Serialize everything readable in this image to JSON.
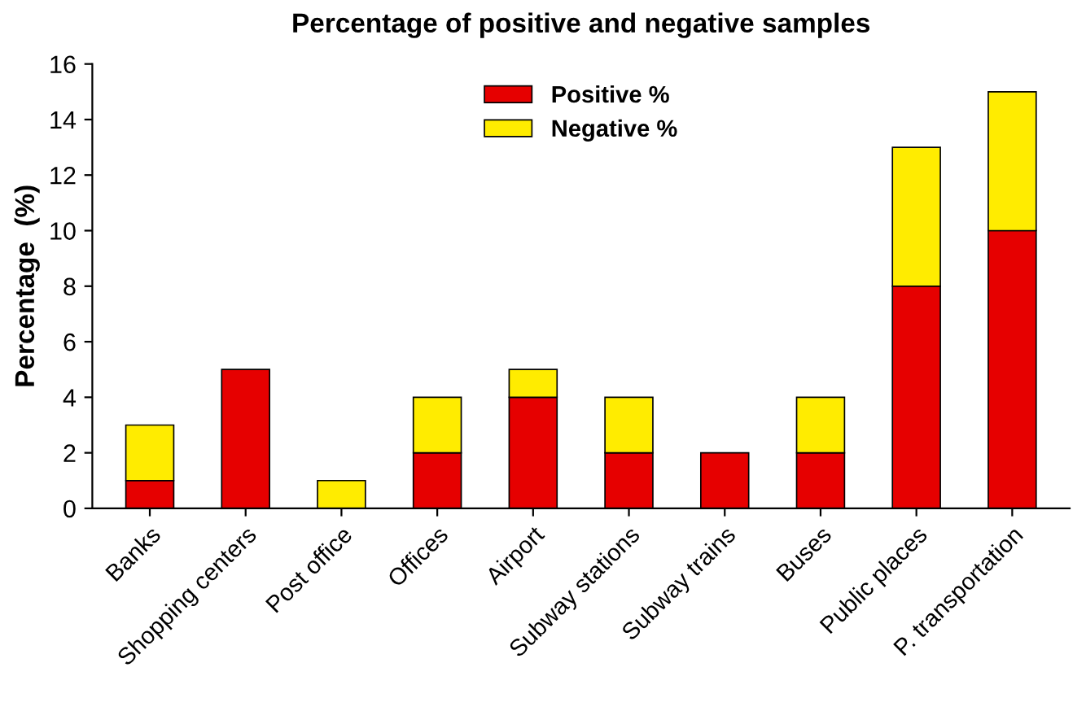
{
  "chart_data": {
    "type": "bar",
    "title": "Percentage of positive and negative samples",
    "ylabel": "Percentage  (%)",
    "categories": [
      "Banks",
      "Shopping centers",
      "Post office",
      "Offices",
      "Airport",
      "Subway stations",
      "Subway trains",
      "Buses",
      "Public places",
      "P. transportation"
    ],
    "series": [
      {
        "name": "Positive %",
        "color": "#e60000",
        "values": [
          1,
          5,
          0,
          2,
          4,
          2,
          2,
          2,
          8,
          10
        ]
      },
      {
        "name": "Negative %",
        "color": "#ffec00",
        "values": [
          2,
          0,
          1,
          2,
          1,
          2,
          0,
          2,
          5,
          5
        ]
      }
    ],
    "stacked": true,
    "ylim": [
      0,
      16
    ],
    "yticks": [
      0,
      2,
      4,
      6,
      8,
      10,
      12,
      14,
      16
    ],
    "grid": false,
    "legend": "top"
  }
}
